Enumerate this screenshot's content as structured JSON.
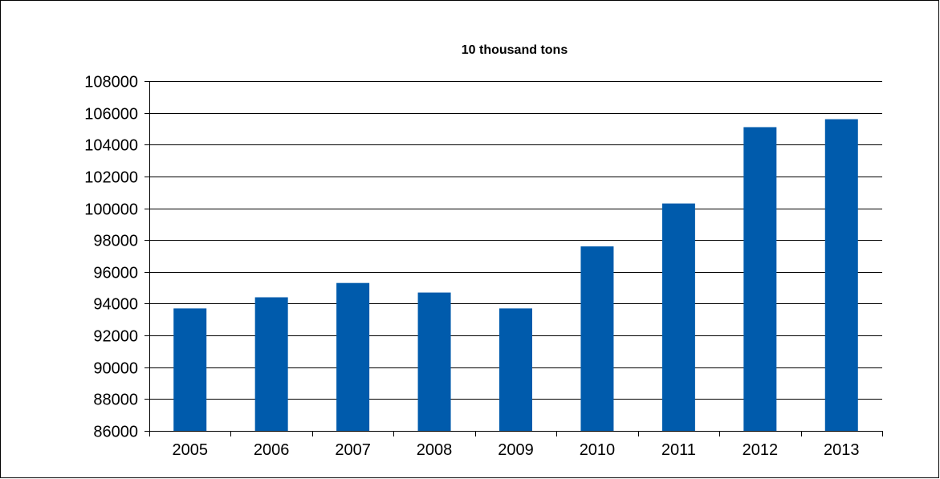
{
  "chart_data": {
    "type": "bar",
    "title": "10 thousand tons",
    "xlabel": "",
    "ylabel": "",
    "categories": [
      "2005",
      "2006",
      "2007",
      "2008",
      "2009",
      "2010",
      "2011",
      "2012",
      "2013"
    ],
    "values": [
      93700,
      94400,
      95300,
      94700,
      93700,
      97600,
      100300,
      105100,
      105600
    ],
    "ylim": [
      86000,
      108000
    ],
    "yticks": [
      86000,
      88000,
      90000,
      92000,
      94000,
      96000,
      98000,
      100000,
      102000,
      104000,
      106000,
      108000
    ],
    "grid": true,
    "legend": "none",
    "colors": {
      "bar": "#005BAC",
      "grid": "#000000",
      "axis": "#000000"
    }
  }
}
